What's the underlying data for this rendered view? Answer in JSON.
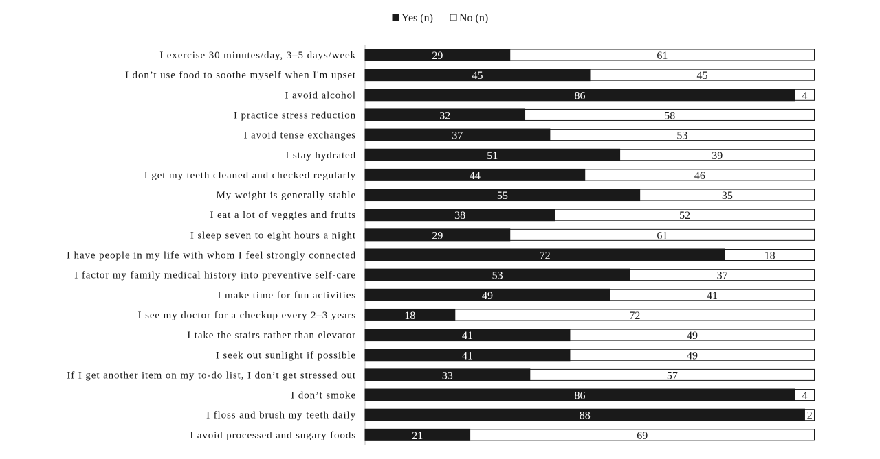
{
  "chart_data": {
    "type": "bar",
    "orientation": "horizontal",
    "stacked": true,
    "title": "",
    "xlabel": "",
    "ylabel": "",
    "xlim": [
      0,
      90
    ],
    "grid": false,
    "legend_position": "top-center",
    "categories": [
      "I exercise 30 minutes/day, 3–5 days/week",
      "I don’t use food to soothe myself when I'm upset",
      "I avoid alcohol",
      "I practice stress reduction",
      "I avoid tense exchanges",
      "I stay hydrated",
      "I get my teeth cleaned and checked regularly",
      "My weight is generally stable",
      "I eat a lot of veggies and fruits",
      "I sleep seven to eight hours a night",
      "I have people in my life with whom I feel strongly connected",
      "I factor my family medical history into preventive self-care",
      "I make time for fun activities",
      "I see my doctor for a checkup every 2–3 years",
      "I take the stairs rather than elevator",
      "I seek out sunlight if possible",
      "If I get another item on my to-do list, I don’t get stressed out",
      "I don’t smoke",
      "I floss and brush my teeth daily",
      "I avoid processed and sugary foods"
    ],
    "series": [
      {
        "name": "Yes (n)",
        "color": "#1a1a1a",
        "values": [
          29,
          45,
          86,
          32,
          37,
          51,
          44,
          55,
          38,
          29,
          72,
          53,
          49,
          18,
          41,
          41,
          33,
          86,
          88,
          21
        ]
      },
      {
        "name": "No (n)",
        "color": "#ffffff",
        "values": [
          61,
          45,
          4,
          58,
          53,
          39,
          46,
          35,
          52,
          61,
          18,
          37,
          41,
          72,
          49,
          49,
          57,
          4,
          2,
          69
        ]
      }
    ]
  }
}
